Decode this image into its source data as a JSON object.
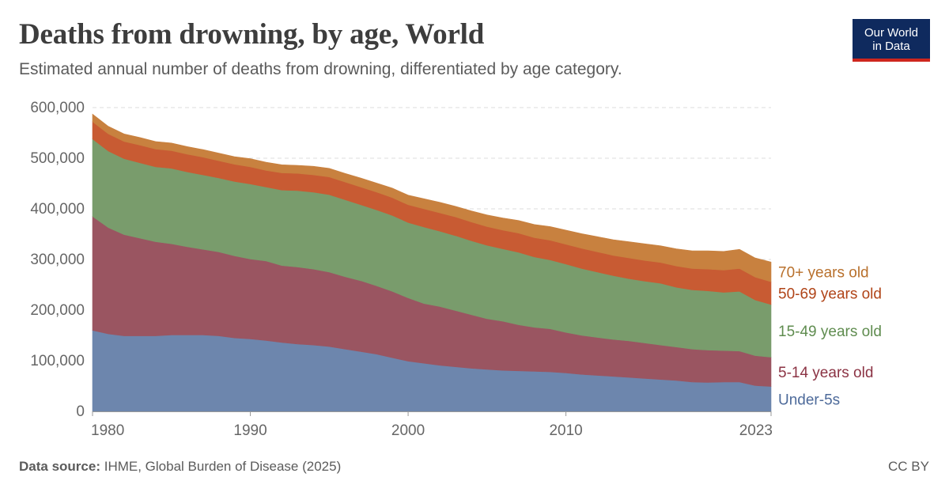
{
  "header": {
    "title": "Deaths from drowning, by age, World",
    "subtitle": "Estimated annual number of deaths from drowning, differentiated by age category."
  },
  "logo": {
    "line1": "Our World",
    "line2": "in Data",
    "bg": "#0f2a5e",
    "accent": "#ce261e"
  },
  "footer": {
    "source_label": "Data source:",
    "source_text": "IHME, Global Burden of Disease (2025)",
    "license": "CC BY"
  },
  "chart_data": {
    "type": "area",
    "stacked": true,
    "title": "Deaths from drowning, by age, World",
    "x": [
      1980,
      1981,
      1982,
      1983,
      1984,
      1985,
      1986,
      1987,
      1988,
      1989,
      1990,
      1991,
      1992,
      1993,
      1994,
      1995,
      1996,
      1997,
      1998,
      1999,
      2000,
      2001,
      2002,
      2003,
      2004,
      2005,
      2006,
      2007,
      2008,
      2009,
      2010,
      2011,
      2012,
      2013,
      2014,
      2015,
      2016,
      2017,
      2018,
      2019,
      2020,
      2021,
      2022,
      2023
    ],
    "xlim": [
      1980,
      2023
    ],
    "x_ticks": [
      "1980",
      "1990",
      "2000",
      "2010",
      "2023"
    ],
    "ylim": [
      0,
      600000
    ],
    "y_ticks": [
      "0",
      "100,000",
      "200,000",
      "300,000",
      "400,000",
      "500,000",
      "600,000"
    ],
    "grid": "horizontal dashed",
    "legend": "right, labels at series ends",
    "series": [
      {
        "name": "Under-5s",
        "color": "#6d86ad",
        "values": [
          160000,
          153000,
          149000,
          149000,
          149000,
          151000,
          151000,
          151000,
          149000,
          145000,
          143000,
          140000,
          136000,
          133000,
          131000,
          128000,
          123000,
          118000,
          113000,
          106000,
          99000,
          95000,
          91000,
          88000,
          85000,
          83000,
          81000,
          80000,
          79000,
          78000,
          76000,
          73000,
          71000,
          69000,
          67000,
          65000,
          63000,
          61000,
          58000,
          57000,
          58000,
          58000,
          51000,
          49000
        ]
      },
      {
        "name": "5-14 years old",
        "color": "#9a5561",
        "values": [
          225000,
          210000,
          200000,
          193000,
          186000,
          180000,
          174000,
          169000,
          166000,
          162000,
          158000,
          157000,
          152000,
          152000,
          150000,
          147000,
          143000,
          140000,
          135000,
          131000,
          125000,
          118000,
          116000,
          111000,
          106000,
          100000,
          97000,
          91000,
          87000,
          85000,
          80000,
          77000,
          75000,
          73000,
          72000,
          70000,
          68000,
          66000,
          65000,
          64000,
          62000,
          61000,
          59000,
          58000
        ]
      },
      {
        "name": "15-49 years old",
        "color": "#799c6c",
        "values": [
          153000,
          151000,
          150000,
          149000,
          148000,
          149000,
          148000,
          147000,
          146000,
          147000,
          148000,
          146000,
          149000,
          151000,
          152000,
          153000,
          152000,
          150000,
          150000,
          150000,
          149000,
          151000,
          149000,
          148000,
          146000,
          145000,
          143000,
          143000,
          139000,
          136000,
          135000,
          132000,
          129000,
          126000,
          123000,
          122000,
          122000,
          118000,
          117000,
          117000,
          115000,
          118000,
          110000,
          104000
        ]
      },
      {
        "name": "50-69 years old",
        "color": "#c85b33",
        "values": [
          34000,
          34000,
          34000,
          35000,
          35000,
          35000,
          35000,
          35000,
          34000,
          34000,
          34000,
          33000,
          34000,
          34000,
          34000,
          35000,
          35000,
          35000,
          35000,
          35000,
          35000,
          36000,
          36000,
          37000,
          37000,
          37000,
          37000,
          38000,
          38000,
          39000,
          39000,
          40000,
          40000,
          40000,
          41000,
          41000,
          41000,
          42000,
          42000,
          43000,
          44000,
          45000,
          45000,
          45000
        ]
      },
      {
        "name": "70+ years old",
        "color": "#c8813f",
        "values": [
          15000,
          15000,
          15000,
          15000,
          15000,
          15000,
          15000,
          15000,
          15000,
          15000,
          16000,
          16000,
          16000,
          16000,
          17000,
          17000,
          17000,
          18000,
          18000,
          19000,
          19000,
          20000,
          21000,
          21000,
          22000,
          23000,
          24000,
          25000,
          26000,
          27000,
          28000,
          29000,
          30000,
          31000,
          32000,
          33000,
          33000,
          34000,
          35000,
          36000,
          37000,
          38000,
          38000,
          39000
        ]
      }
    ],
    "label_colors": [
      "#4d6a9a",
      "#8b3344",
      "#5f8c4f",
      "#b04418",
      "#b8702c"
    ]
  }
}
